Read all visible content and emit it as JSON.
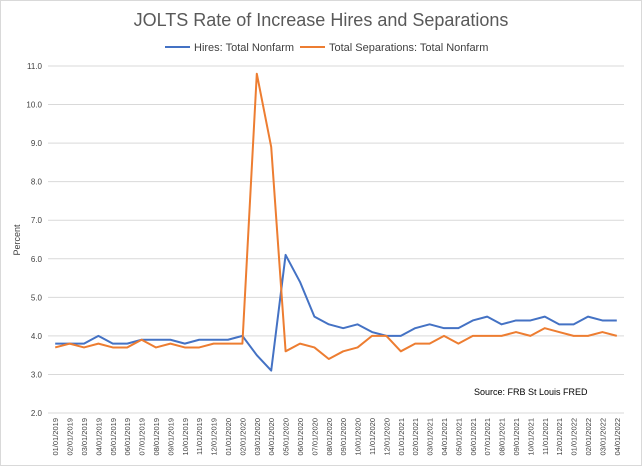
{
  "chart_data": {
    "type": "line",
    "title": "JOLTS Rate of Increase Hires and Separations",
    "ylabel": "Percent",
    "xlabel": "",
    "ylim": [
      2.0,
      11.0
    ],
    "yticks": [
      "2.0",
      "3.0",
      "4.0",
      "5.0",
      "6.0",
      "7.0",
      "8.0",
      "9.0",
      "10.0",
      "11.0"
    ],
    "grid": true,
    "legend_position": "top",
    "annotation": "Source: FRB St Louis FRED",
    "categories": [
      "01/01/2019",
      "02/01/2019",
      "03/01/2019",
      "04/01/2019",
      "05/01/2019",
      "06/01/2019",
      "07/01/2019",
      "08/01/2019",
      "09/01/2019",
      "10/01/2019",
      "11/01/2019",
      "12/01/2019",
      "01/01/2020",
      "02/01/2020",
      "03/01/2020",
      "04/01/2020",
      "05/01/2020",
      "06/01/2020",
      "07/01/2020",
      "08/01/2020",
      "09/01/2020",
      "10/01/2020",
      "11/01/2020",
      "12/01/2020",
      "01/01/2021",
      "02/01/2021",
      "03/01/2021",
      "04/01/2021",
      "05/01/2021",
      "06/01/2021",
      "07/01/2021",
      "08/01/2021",
      "09/01/2021",
      "10/01/2021",
      "11/01/2021",
      "12/01/2021",
      "01/01/2022",
      "02/01/2022",
      "03/01/2022",
      "04/01/2022"
    ],
    "series": [
      {
        "name": "Hires: Total Nonfarm",
        "color": "#4472c4",
        "values": [
          3.8,
          3.8,
          3.8,
          4.0,
          3.8,
          3.8,
          3.9,
          3.9,
          3.9,
          3.8,
          3.9,
          3.9,
          3.9,
          4.0,
          3.5,
          3.1,
          6.1,
          5.4,
          4.5,
          4.3,
          4.2,
          4.3,
          4.1,
          4.0,
          4.0,
          4.2,
          4.3,
          4.2,
          4.2,
          4.4,
          4.5,
          4.3,
          4.4,
          4.4,
          4.5,
          4.3,
          4.3,
          4.5,
          4.4,
          4.4
        ]
      },
      {
        "name": "Total Separations: Total Nonfarm",
        "color": "#ed7d31",
        "values": [
          3.7,
          3.8,
          3.7,
          3.8,
          3.7,
          3.7,
          3.9,
          3.7,
          3.8,
          3.7,
          3.7,
          3.8,
          3.8,
          3.8,
          10.8,
          8.9,
          3.6,
          3.8,
          3.7,
          3.4,
          3.6,
          3.7,
          4.0,
          4.0,
          3.6,
          3.8,
          3.8,
          4.0,
          3.8,
          4.0,
          4.0,
          4.0,
          4.1,
          4.0,
          4.2,
          4.1,
          4.0,
          4.0,
          4.1,
          4.0
        ]
      }
    ]
  }
}
